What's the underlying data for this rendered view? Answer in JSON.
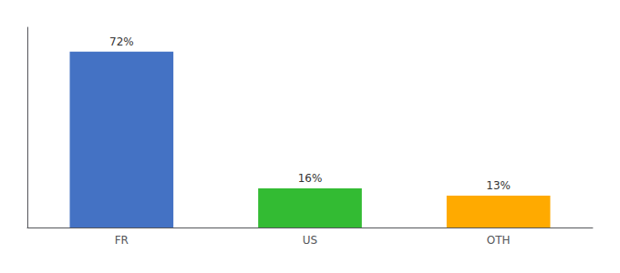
{
  "chart_data": {
    "type": "bar",
    "categories": [
      "FR",
      "US",
      "OTH"
    ],
    "values": [
      72,
      16,
      13
    ],
    "value_labels": [
      "72%",
      "16%",
      "13%"
    ],
    "data_labels": true,
    "colors": [
      "#4472c4",
      "#33bb33",
      "#ffaa00"
    ],
    "ylim": [
      0,
      82
    ],
    "grid": false,
    "tick_labels": "x"
  }
}
